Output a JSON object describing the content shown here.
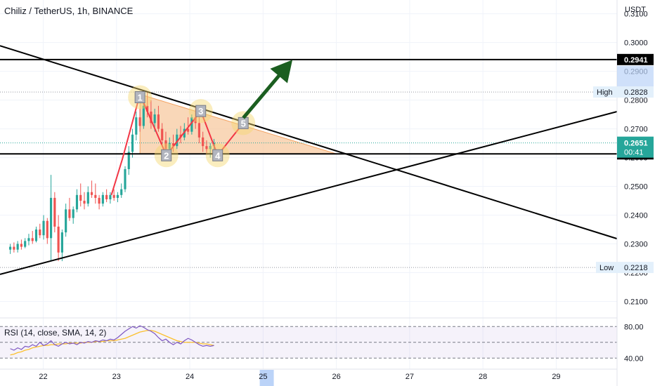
{
  "header": {
    "title": "Chiliz / TetherUS, 1h, BINANCE",
    "currency": "USDT"
  },
  "price_axis": {
    "ticks": [
      "0.3100",
      "0.3000",
      "0.2900",
      "0.2800",
      "0.2700",
      "0.2600",
      "0.2500",
      "0.2400",
      "0.2300",
      "0.2200",
      "0.2100"
    ],
    "labels": {
      "resistance": "0.2941",
      "high_tag": "High",
      "high_value": "0.2828",
      "current_price": "0.2651",
      "countdown": "00:41",
      "support": "0.2613",
      "low_tag": "Low",
      "low_value": "0.2218"
    }
  },
  "time_axis": {
    "ticks": [
      "22",
      "23",
      "24",
      "25",
      "26",
      "27",
      "28",
      "29"
    ]
  },
  "rsi": {
    "label": "RSI (14, close, SMA, 14, 2)",
    "ticks": [
      "80.00",
      "40.00"
    ]
  },
  "pattern_labels": [
    "1",
    "2",
    "3",
    "4",
    "5"
  ],
  "colors": {
    "up": "#26a69a",
    "down": "#ef5350",
    "zigzag": "#f23645",
    "triangle_fill": "#f7c9a0",
    "highlight": "#f5d76e",
    "arrow": "#1b5e20",
    "rsi_line": "#7e57c2",
    "rsi_signal": "#fbc02d",
    "line": "#000000",
    "current_tag": "#26a69a"
  },
  "chart_data": {
    "type": "candlestick",
    "symbol": "Chiliz / TetherUS",
    "timeframe": "1h",
    "exchange": "BINANCE",
    "y_range": [
      0.2045,
      0.3148
    ],
    "x_range": [
      21.41,
      29.83
    ],
    "x_ticks": [
      22,
      23,
      24,
      25,
      26,
      27,
      28,
      29
    ],
    "horizontal_lines": [
      0.2941,
      0.2613
    ],
    "current_price": 0.2651,
    "session_high": 0.2828,
    "session_low": 0.2218,
    "trendlines": [
      {
        "from": [
          21.41,
          0.2989
        ],
        "to": [
          29.83,
          0.2318
        ]
      },
      {
        "from": [
          21.41,
          0.2194
        ],
        "to": [
          29.83,
          0.276
        ]
      }
    ],
    "triangle": [
      [
        23.32,
        0.282
      ],
      [
        26.0,
        0.2613
      ],
      [
        23.32,
        0.2613
      ]
    ],
    "pattern_points": [
      {
        "label": "1",
        "x": 23.32,
        "y": 0.281
      },
      {
        "label": "2",
        "x": 23.68,
        "y": 0.2608
      },
      {
        "label": "3",
        "x": 24.15,
        "y": 0.2762
      },
      {
        "label": "4",
        "x": 24.38,
        "y": 0.2608
      },
      {
        "label": "5",
        "x": 24.73,
        "y": 0.272
      }
    ],
    "arrow": {
      "from": [
        24.73,
        0.2738
      ],
      "to": [
        25.4,
        0.294
      ]
    },
    "zigzag": [
      [
        22.93,
        0.247
      ],
      [
        23.08,
        0.2595
      ],
      [
        23.32,
        0.282
      ],
      [
        23.68,
        0.2608
      ],
      [
        24.15,
        0.2762
      ],
      [
        24.38,
        0.2608
      ],
      [
        24.73,
        0.272
      ]
    ],
    "candles": [
      [
        0.228,
        0.23,
        0.2265,
        0.229
      ],
      [
        0.229,
        0.2305,
        0.227,
        0.228
      ],
      [
        0.228,
        0.231,
        0.227,
        0.23
      ],
      [
        0.23,
        0.2315,
        0.228,
        0.229
      ],
      [
        0.229,
        0.232,
        0.2285,
        0.231
      ],
      [
        0.231,
        0.2335,
        0.2295,
        0.232
      ],
      [
        0.232,
        0.2345,
        0.23,
        0.231
      ],
      [
        0.231,
        0.236,
        0.2305,
        0.235
      ],
      [
        0.235,
        0.237,
        0.232,
        0.233
      ],
      [
        0.233,
        0.24,
        0.2315,
        0.238
      ],
      [
        0.238,
        0.239,
        0.23,
        0.232
      ],
      [
        0.232,
        0.254,
        0.224,
        0.246
      ],
      [
        0.246,
        0.248,
        0.234,
        0.236
      ],
      [
        0.236,
        0.24,
        0.224,
        0.227
      ],
      [
        0.227,
        0.235,
        0.224,
        0.234
      ],
      [
        0.234,
        0.244,
        0.2325,
        0.242
      ],
      [
        0.242,
        0.246,
        0.238,
        0.239
      ],
      [
        0.239,
        0.243,
        0.237,
        0.242
      ],
      [
        0.242,
        0.249,
        0.241,
        0.247
      ],
      [
        0.247,
        0.251,
        0.243,
        0.245
      ],
      [
        0.245,
        0.248,
        0.242,
        0.244
      ],
      [
        0.244,
        0.25,
        0.243,
        0.248
      ],
      [
        0.248,
        0.252,
        0.246,
        0.247
      ],
      [
        0.247,
        0.251,
        0.244,
        0.246
      ],
      [
        0.246,
        0.247,
        0.242,
        0.244
      ],
      [
        0.244,
        0.248,
        0.243,
        0.247
      ],
      [
        0.247,
        0.249,
        0.2445,
        0.2455
      ],
      [
        0.2455,
        0.248,
        0.244,
        0.247
      ],
      [
        0.247,
        0.249,
        0.245,
        0.246
      ],
      [
        0.246,
        0.248,
        0.2445,
        0.247
      ],
      [
        0.247,
        0.251,
        0.246,
        0.249
      ],
      [
        0.249,
        0.257,
        0.248,
        0.256
      ],
      [
        0.256,
        0.264,
        0.254,
        0.262
      ],
      [
        0.262,
        0.27,
        0.26,
        0.268
      ],
      [
        0.268,
        0.276,
        0.266,
        0.274
      ],
      [
        0.274,
        0.277,
        0.269,
        0.271
      ],
      [
        0.271,
        0.28,
        0.27,
        0.278
      ],
      [
        0.278,
        0.283,
        0.274,
        0.276
      ],
      [
        0.276,
        0.28,
        0.27,
        0.272
      ],
      [
        0.272,
        0.277,
        0.269,
        0.275
      ],
      [
        0.275,
        0.278,
        0.269,
        0.27
      ],
      [
        0.27,
        0.272,
        0.264,
        0.266
      ],
      [
        0.266,
        0.269,
        0.261,
        0.263
      ],
      [
        0.263,
        0.267,
        0.26,
        0.265
      ],
      [
        0.265,
        0.268,
        0.262,
        0.264
      ],
      [
        0.264,
        0.27,
        0.263,
        0.268
      ],
      [
        0.268,
        0.271,
        0.265,
        0.267
      ],
      [
        0.267,
        0.272,
        0.266,
        0.27
      ],
      [
        0.27,
        0.274,
        0.268,
        0.269
      ],
      [
        0.269,
        0.275,
        0.268,
        0.274
      ],
      [
        0.274,
        0.278,
        0.27,
        0.272
      ],
      [
        0.272,
        0.274,
        0.265,
        0.267
      ],
      [
        0.267,
        0.269,
        0.262,
        0.264
      ],
      [
        0.264,
        0.266,
        0.261,
        0.263
      ],
      [
        0.263,
        0.265,
        0.26,
        0.264
      ],
      [
        0.264,
        0.2665,
        0.2625,
        0.2651
      ]
    ],
    "rsi": {
      "range": [
        26,
        90
      ],
      "levels": [
        80,
        60,
        40
      ],
      "values": [
        52,
        50,
        53,
        51,
        55,
        54,
        57,
        55,
        60,
        56,
        58,
        62,
        57,
        55,
        58,
        60,
        58,
        59,
        57,
        60,
        59,
        61,
        60,
        62,
        61,
        63,
        62,
        64,
        63,
        66,
        70,
        74,
        77,
        80,
        78,
        81,
        79,
        76,
        74,
        71,
        66,
        62,
        64,
        60,
        57,
        60,
        58,
        62,
        65,
        63,
        60,
        57,
        55,
        56,
        55,
        56
      ],
      "signal": [
        44,
        45,
        47,
        48,
        50,
        51,
        53,
        54,
        55,
        56,
        56,
        57,
        57,
        58,
        58,
        58,
        59,
        59,
        59,
        59,
        60,
        60,
        60,
        61,
        61,
        61,
        62,
        62,
        62,
        63,
        64,
        65,
        67,
        69,
        71,
        73,
        74,
        75,
        75,
        74,
        72,
        70,
        68,
        66,
        64,
        62,
        61,
        60,
        60,
        60,
        60,
        59,
        58,
        58,
        57,
        56
      ]
    }
  }
}
